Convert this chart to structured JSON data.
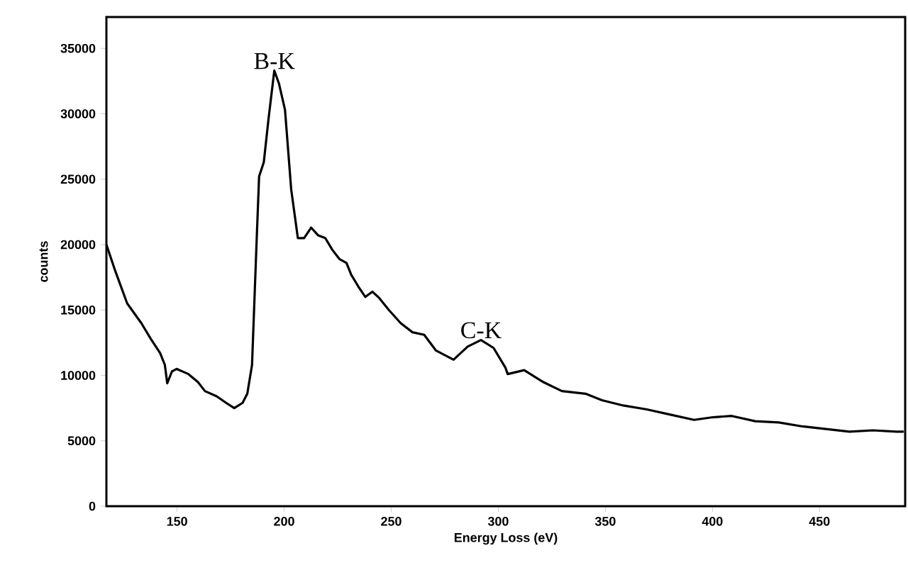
{
  "chart_data": {
    "type": "line",
    "xlabel": "Energy Loss (eV)",
    "ylabel": "counts",
    "xlim": [
      117,
      490
    ],
    "ylim": [
      0,
      37400
    ],
    "xticks": [
      150,
      200,
      250,
      300,
      350,
      400,
      450
    ],
    "yticks": [
      0,
      5000,
      10000,
      15000,
      20000,
      25000,
      30000,
      35000
    ],
    "marker": "none",
    "line_style": "solid",
    "series": [
      {
        "color": "#000000",
        "x": [
          117,
          121.1,
          126.7,
          133.3,
          137.7,
          142.1,
          144.3,
          145.4,
          147.6,
          149.8,
          155.3,
          159.7,
          163.0,
          168.5,
          172.9,
          176.7,
          180.6,
          182.8,
          185.0,
          187.2,
          188.3,
          190.5,
          192.7,
          195.4,
          197.6,
          200.4,
          203.3,
          206.4,
          209.3,
          212.6,
          215.9,
          219.2,
          222.5,
          225.8,
          229.1,
          231.3,
          234.6,
          237.9,
          241.2,
          244.5,
          248.9,
          254.4,
          259.9,
          265.4,
          270.9,
          279.1,
          285.7,
          291.9,
          297.8,
          303.3,
          304.4,
          312.1,
          320.9,
          329.7,
          340.7,
          348.4,
          358.3,
          369.4,
          380.4,
          391.4,
          400.2,
          409.0,
          420.0,
          431.0,
          442.0,
          453.0,
          464.0,
          475.0,
          486.0,
          489.3
        ],
        "values": [
          20000,
          18000,
          15500,
          14000,
          12800,
          11700,
          10800,
          9400,
          10300,
          10500,
          10100,
          9500,
          8800,
          8400,
          7900,
          7500,
          7900,
          8600,
          10800,
          20500,
          25200,
          26300,
          29600,
          33300,
          32300,
          30300,
          24200,
          20500,
          20500,
          21300,
          20700,
          20500,
          19600,
          18900,
          18600,
          17700,
          16800,
          16000,
          16400,
          15900,
          15000,
          14000,
          13300,
          13100,
          11900,
          11200,
          12200,
          12700,
          12100,
          10600,
          10100,
          10400,
          9500,
          8800,
          8600,
          8100,
          7700,
          7400,
          7000,
          6600,
          6800,
          6900,
          6500,
          6400,
          6100,
          5900,
          5700,
          5800,
          5700,
          5700
        ]
      }
    ],
    "annotations": [
      {
        "text": "B-K",
        "x": 195.4,
        "y": 33300
      },
      {
        "text": "C-K",
        "x": 291.9,
        "y": 12700
      }
    ]
  }
}
